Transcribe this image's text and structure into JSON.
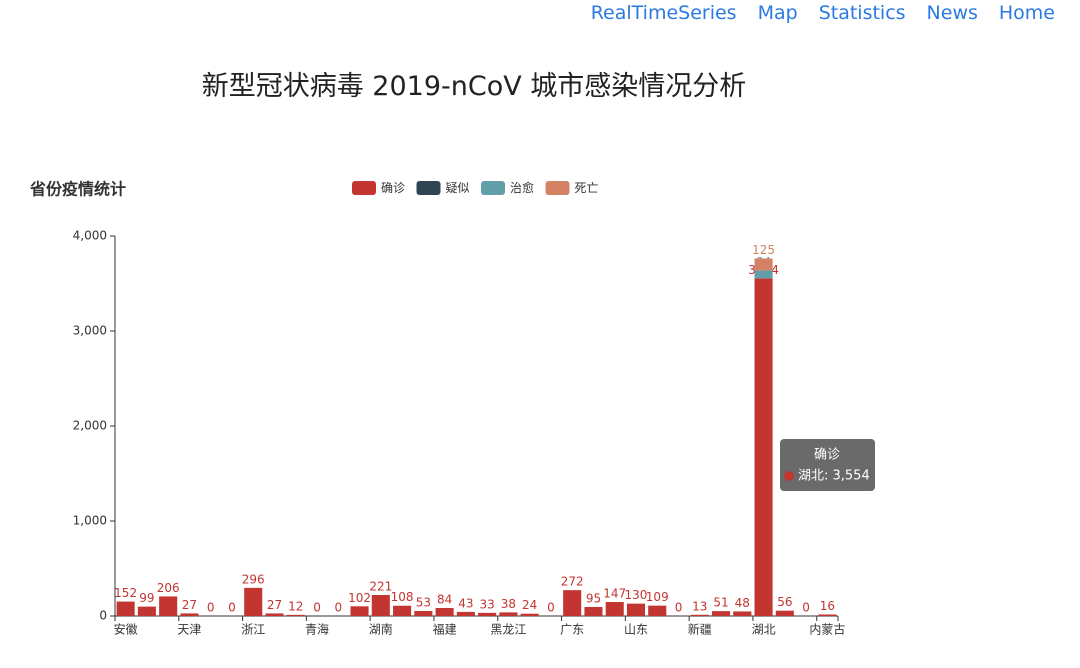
{
  "nav": [
    "RealTimeSeries",
    "Map",
    "Statistics",
    "News",
    "Home"
  ],
  "page_title": "新型冠状病毒 2019-nCoV 城市感染情况分析",
  "chart_data": {
    "type": "bar",
    "title": "省份疫情统计",
    "stacked": true,
    "categories": [
      "安徽",
      null,
      null,
      "天津",
      null,
      null,
      "浙江",
      null,
      null,
      "青海",
      null,
      null,
      "湖南",
      null,
      null,
      "福建",
      null,
      null,
      "黑龙江",
      null,
      null,
      "广东",
      null,
      null,
      "山东",
      null,
      null,
      "新疆",
      null,
      null,
      "湖北",
      null,
      null,
      "内蒙古"
    ],
    "series": [
      {
        "name": "确诊",
        "color": "#c23531",
        "values": [
          152,
          99,
          206,
          27,
          0,
          0,
          296,
          27,
          12,
          0,
          0,
          102,
          221,
          108,
          53,
          84,
          43,
          33,
          38,
          24,
          0,
          272,
          95,
          147,
          130,
          109,
          0,
          13,
          51,
          48,
          3554,
          56,
          0,
          16
        ]
      },
      {
        "name": "疑似",
        "color": "#2f4554",
        "values": [
          0,
          0,
          0,
          0,
          0,
          0,
          0,
          0,
          0,
          0,
          0,
          0,
          0,
          0,
          0,
          0,
          0,
          0,
          0,
          0,
          0,
          0,
          0,
          0,
          0,
          0,
          0,
          0,
          0,
          0,
          0,
          0,
          0,
          0
        ]
      },
      {
        "name": "治愈",
        "color": "#61a0a8",
        "values": [
          0,
          0,
          0,
          0,
          0,
          0,
          0,
          0,
          0,
          0,
          0,
          0,
          0,
          0,
          0,
          0,
          0,
          0,
          0,
          0,
          0,
          0,
          0,
          0,
          0,
          0,
          0,
          0,
          0,
          0,
          84,
          0,
          0,
          0
        ]
      },
      {
        "name": "死亡",
        "color": "#d48265",
        "values": [
          0,
          0,
          0,
          0,
          0,
          0,
          0,
          0,
          0,
          0,
          0,
          0,
          0,
          0,
          0,
          0,
          0,
          0,
          0,
          0,
          0,
          0,
          0,
          0,
          0,
          0,
          0,
          0,
          0,
          0,
          125,
          0,
          0,
          0
        ]
      }
    ],
    "ylim": [
      0,
      4000
    ],
    "yticks": [
      0,
      {
        "value": 1000,
        "label": "1,000"
      },
      {
        "value": 2000,
        "label": "2,000"
      },
      {
        "value": 3000,
        "label": "3,000"
      },
      {
        "value": 4000,
        "label": "4,000"
      }
    ],
    "legend": "top",
    "tooltip": {
      "series": "确诊",
      "text": "湖北: 3,554"
    }
  }
}
